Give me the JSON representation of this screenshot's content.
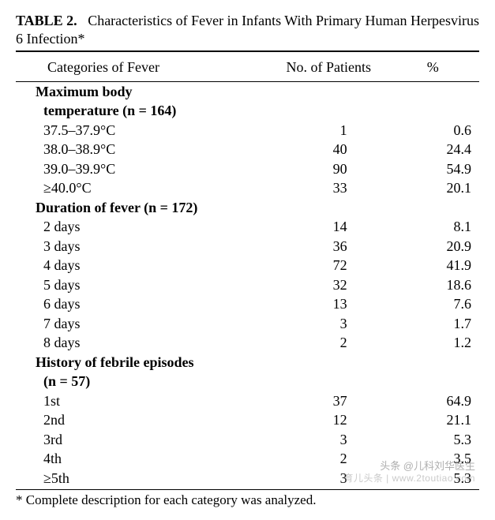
{
  "caption": {
    "label": "TABLE 2.",
    "text": "Characteristics of Fever in Infants With Primary Human Herpesvirus 6 Infection*"
  },
  "columns": [
    "Categories of Fever",
    "No. of Patients",
    "%"
  ],
  "sections": [
    {
      "heading": "Maximum body",
      "heading2": "temperature (n = 164)",
      "rows": [
        {
          "label": "37.5–37.9°C",
          "n": "1",
          "pct": "0.6"
        },
        {
          "label": "38.0–38.9°C",
          "n": "40",
          "pct": "24.4"
        },
        {
          "label": "39.0–39.9°C",
          "n": "90",
          "pct": "54.9"
        },
        {
          "label": "≥40.0°C",
          "n": "33",
          "pct": "20.1"
        }
      ]
    },
    {
      "heading": "Duration of fever (n = 172)",
      "rows": [
        {
          "label": "2 days",
          "n": "14",
          "pct": "8.1"
        },
        {
          "label": "3 days",
          "n": "36",
          "pct": "20.9"
        },
        {
          "label": "4 days",
          "n": "72",
          "pct": "41.9"
        },
        {
          "label": "5 days",
          "n": "32",
          "pct": "18.6"
        },
        {
          "label": "6 days",
          "n": "13",
          "pct": "7.6"
        },
        {
          "label": "7 days",
          "n": "3",
          "pct": "1.7"
        },
        {
          "label": "8 days",
          "n": "2",
          "pct": "1.2"
        }
      ]
    },
    {
      "heading": "History of febrile episodes",
      "heading2": "(n = 57)",
      "rows": [
        {
          "label": "1st",
          "n": "37",
          "pct": "64.9"
        },
        {
          "label": "2nd",
          "n": "12",
          "pct": "21.1"
        },
        {
          "label": "3rd",
          "n": "3",
          "pct": "5.3"
        },
        {
          "label": "4th",
          "n": "2",
          "pct": "3.5"
        },
        {
          "label": "≥5th",
          "n": "3",
          "pct": "5.3"
        }
      ]
    }
  ],
  "footnote": "* Complete description for each category was analyzed.",
  "watermark": {
    "line1": "头条 @儿科刘华医生",
    "line2": "育儿头条 | www.2toutiao.com"
  },
  "style": {
    "font_family": "Book Antiqua, Palatino, serif",
    "font_size_pt": 18,
    "text_color": "#000000",
    "background_color": "#ffffff",
    "rule_color": "#000000",
    "col_widths_pct": [
      55,
      25,
      20
    ]
  }
}
